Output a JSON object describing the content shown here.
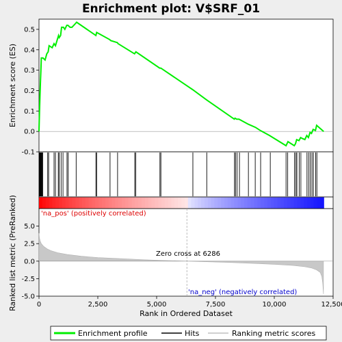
{
  "chart_data": {
    "type": "line",
    "title": "Enrichment plot: V$SRF_01",
    "top_panel": {
      "ylabel": "Enrichment score (ES)",
      "ylim": [
        -0.1,
        0.55
      ],
      "yticks": [
        -0.1,
        0.0,
        0.1,
        0.2,
        0.3,
        0.4,
        0.5
      ],
      "ytick_labels": [
        "-0.1",
        "0.0",
        "0.1",
        "0.2",
        "0.3",
        "0.4",
        "0.5"
      ],
      "series": [
        {
          "name": "Enrichment profile",
          "color": "#00ee00",
          "x": [
            0,
            20,
            40,
            60,
            80,
            100,
            130,
            170,
            260,
            330,
            390,
            430,
            560,
            640,
            700,
            780,
            830,
            860,
            920,
            960,
            1040,
            1100,
            1180,
            1230,
            1320,
            1400,
            1560,
            1600,
            2420,
            2450,
            3000,
            3050,
            3330,
            3360,
            4060,
            4090,
            4120,
            5130,
            5180,
            6530,
            7120,
            8300,
            8330,
            8400,
            8500,
            8900,
            9200,
            9400,
            9800,
            10500,
            10580,
            10850,
            10900,
            10950,
            11050,
            11120,
            11200,
            11300,
            11380,
            11450,
            11520,
            11580,
            11650,
            11750,
            11800,
            12000,
            12100
          ],
          "y": [
            0.0,
            0.09,
            0.17,
            0.24,
            0.3,
            0.36,
            0.36,
            0.36,
            0.35,
            0.38,
            0.39,
            0.42,
            0.41,
            0.43,
            0.42,
            0.45,
            0.47,
            0.46,
            0.47,
            0.51,
            0.51,
            0.5,
            0.52,
            0.52,
            0.51,
            0.51,
            0.53,
            0.535,
            0.47,
            0.485,
            0.45,
            0.445,
            0.435,
            0.43,
            0.38,
            0.385,
            0.39,
            0.31,
            0.31,
            0.205,
            0.155,
            0.06,
            0.065,
            0.06,
            0.06,
            0.035,
            0.02,
            0.005,
            -0.02,
            -0.07,
            -0.05,
            -0.07,
            -0.06,
            -0.04,
            -0.045,
            -0.03,
            -0.035,
            -0.04,
            -0.02,
            -0.03,
            -0.005,
            -0.01,
            0.01,
            0.005,
            0.03,
            0.01,
            0.0
          ]
        }
      ]
    },
    "hits": [
      10,
      30,
      50,
      70,
      90,
      110,
      130,
      160,
      370,
      410,
      640,
      700,
      820,
      860,
      940,
      1020,
      1190,
      1240,
      1580,
      2420,
      2450,
      3020,
      3340,
      4070,
      4110,
      5140,
      5180,
      6540,
      7130,
      8310,
      8350,
      8420,
      8520,
      8900,
      9190,
      9420,
      9830,
      10500,
      10570,
      10860,
      10920,
      10960,
      11060,
      11130,
      11390,
      11460,
      11530,
      11600,
      11660,
      11760,
      11810
    ],
    "bottom_panel": {
      "ylabel": "Ranked list metric (PreRanked)",
      "ylim": [
        -5.0,
        7.5
      ],
      "yticks": [
        -5.0,
        -2.5,
        0.0,
        2.5,
        5.0
      ],
      "ytick_labels": [
        "-5.0",
        "-2.5",
        "0.0",
        "2.5",
        "5.0"
      ],
      "series_name": "Ranking metric scores",
      "curve_x": [
        0,
        20,
        50,
        100,
        200,
        350,
        500,
        800,
        1200,
        1800,
        2500,
        3500,
        4500,
        5500,
        6286,
        7000,
        8000,
        9000,
        10000,
        10800,
        11300,
        11600,
        11800,
        11950,
        12020,
        12060,
        12090
      ],
      "curve_y": [
        4.0,
        3.3,
        2.9,
        2.5,
        2.1,
        1.75,
        1.5,
        1.2,
        0.95,
        0.7,
        0.52,
        0.35,
        0.2,
        0.08,
        0.0,
        -0.08,
        -0.18,
        -0.3,
        -0.45,
        -0.62,
        -0.8,
        -1.0,
        -1.25,
        -1.6,
        -2.2,
        -3.2,
        -4.7
      ],
      "zero_cross_label": "Zero cross at 6286",
      "zero_cross": 6286,
      "pos_label": "'na_pos' (positively correlated)",
      "neg_label": "'na_neg' (negatively correlated)",
      "pos_color": "#dd0000",
      "neg_color": "#0000cc"
    },
    "xlabel": "Rank in Ordered Dataset",
    "xlim": [
      0,
      12500
    ],
    "xticks": [
      0,
      2500,
      5000,
      7500,
      10000,
      12500
    ],
    "xtick_labels": [
      "0",
      "2,500",
      "5,000",
      "7,500",
      "10,000",
      "12,500"
    ],
    "legend": {
      "position": "bottom",
      "items": [
        {
          "label": "Enrichment profile",
          "color": "#00ee00"
        },
        {
          "label": "Hits",
          "color": "#000000"
        },
        {
          "label": "Ranking metric scores",
          "color": "#c0c0c0"
        }
      ]
    }
  }
}
